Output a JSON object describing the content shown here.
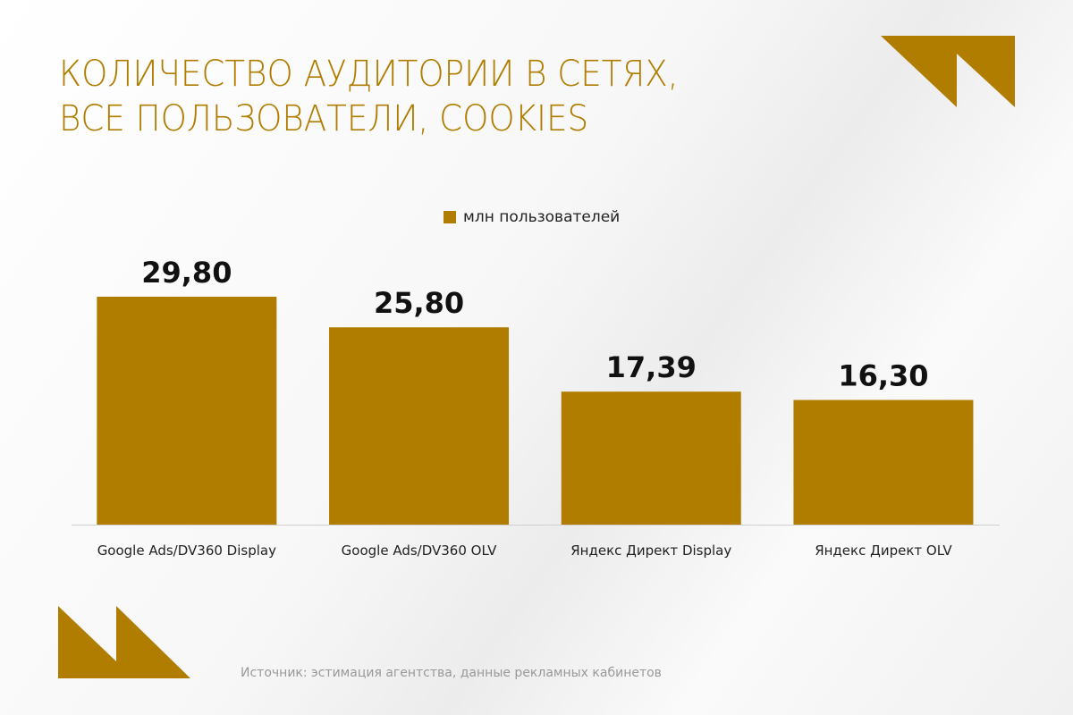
{
  "title_lines": [
    "КОЛИЧЕСТВО АУДИТОРИИ В СЕТЯХ,",
    "ВСЕ ПОЛЬЗОВАТЕЛИ, COOKIES"
  ],
  "source": "Источник: эстимация агентства, данные рекламных кабинетов",
  "colors": {
    "accent": "#B07D00"
  },
  "chart_data": {
    "type": "bar",
    "categories": [
      "Google Ads/DV360 Display",
      "Google Ads/DV360 OLV",
      "Яндекс Директ Display",
      "Яндекс Директ OLV"
    ],
    "series": [
      {
        "name": "млн пользователей",
        "values": [
          29.8,
          25.8,
          17.39,
          16.3
        ]
      }
    ],
    "data_labels": [
      "29,80",
      "25,80",
      "17,39",
      "16,30"
    ],
    "legend": "top",
    "grid": false,
    "ylim": [
      0,
      30
    ]
  }
}
